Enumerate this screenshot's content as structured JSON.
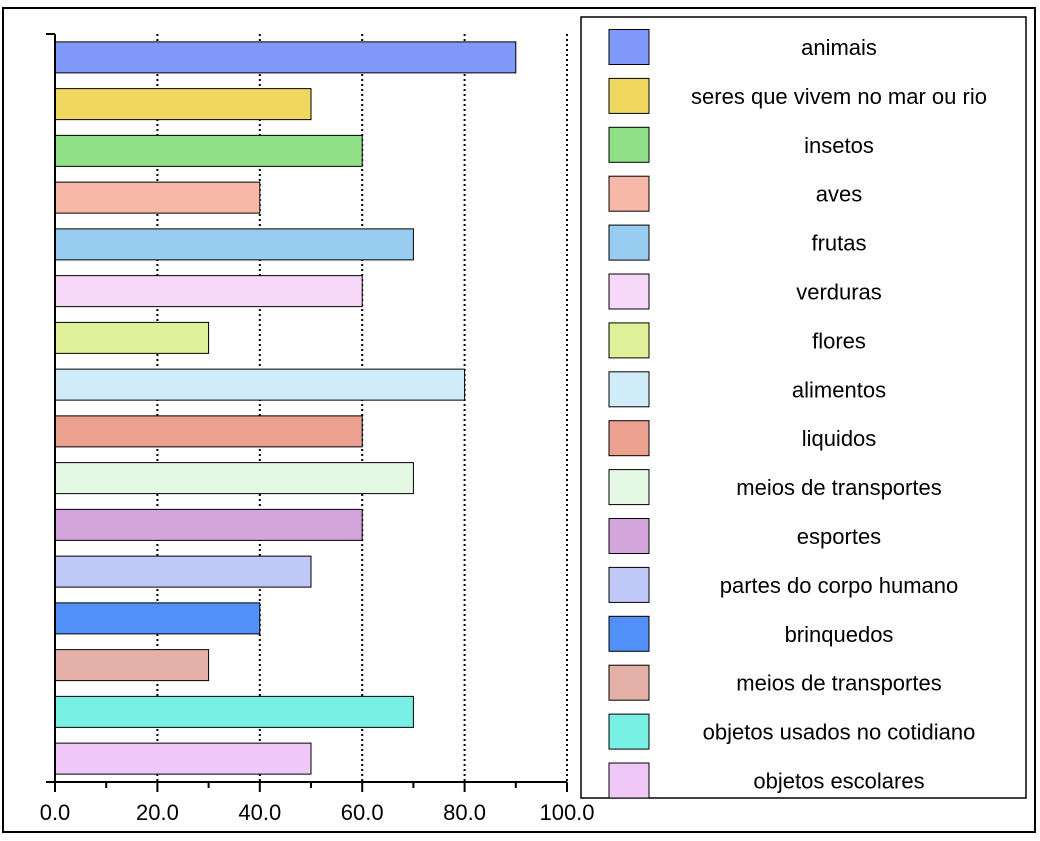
{
  "chart_data": {
    "type": "bar",
    "orientation": "horizontal",
    "categories": [
      "animais",
      "seres que vivem no mar ou rio",
      "insetos",
      "aves",
      "frutas",
      "verduras",
      "flores",
      "alimentos",
      "liquidos",
      "meios de transportes",
      "esportes",
      "partes do corpo humano",
      "brinquedos",
      "meios de transportes",
      "objetos usados no cotidiano",
      "objetos escolares"
    ],
    "values": [
      90,
      50,
      60,
      40,
      70,
      60,
      30,
      80,
      60,
      70,
      60,
      50,
      40,
      30,
      70,
      50
    ],
    "colors": [
      "#8098f8",
      "#f0d860",
      "#90e088",
      "#f8b8a8",
      "#98ccf0",
      "#f8d8f8",
      "#e0f098",
      "#d0ecf8",
      "#eca090",
      "#e4f8e4",
      "#d4a4dc",
      "#c0c8f8",
      "#5090f8",
      "#e4b0a8",
      "#78f0e4",
      "#f0c8f8"
    ],
    "xlim": [
      0,
      100
    ],
    "x_ticks": [
      "0.0",
      "20.0",
      "40.0",
      "60.0",
      "80.0",
      "100.0"
    ],
    "tick_values": [
      0,
      20,
      40,
      60,
      80,
      100
    ],
    "grid": "vertical dotted",
    "legend_position": "right"
  }
}
